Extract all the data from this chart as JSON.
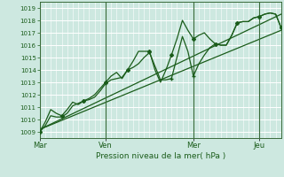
{
  "title": "Pression niveau de la mer( hPa )",
  "ylabel_values": [
    1009,
    1010,
    1011,
    1012,
    1013,
    1014,
    1015,
    1016,
    1017,
    1018,
    1019
  ],
  "ylim": [
    1008.5,
    1019.5
  ],
  "xlim": [
    0,
    264
  ],
  "background_color": "#cde8e0",
  "grid_color": "#ffffff",
  "line_color": "#1a5c1a",
  "day_labels": [
    "Mar",
    "Ven",
    "Mer",
    "Jeu"
  ],
  "day_positions": [
    0,
    72,
    168,
    240
  ],
  "series1_x": [
    0,
    6,
    12,
    18,
    24,
    30,
    36,
    42,
    48,
    54,
    60,
    66,
    72,
    78,
    84,
    90,
    96,
    102,
    108,
    114,
    120,
    126,
    132,
    138,
    144,
    150,
    156,
    162,
    168,
    174,
    180,
    186,
    192,
    198,
    204,
    210,
    216,
    222,
    228,
    234,
    240,
    246,
    252,
    258,
    264
  ],
  "series1_y": [
    1009.0,
    1009.8,
    1010.8,
    1010.5,
    1010.3,
    1010.8,
    1011.4,
    1011.2,
    1011.5,
    1011.7,
    1012.0,
    1012.5,
    1013.0,
    1013.5,
    1013.8,
    1013.3,
    1014.0,
    1014.7,
    1015.5,
    1015.5,
    1015.5,
    1014.0,
    1013.0,
    1014.0,
    1015.2,
    1016.5,
    1018.0,
    1017.2,
    1016.5,
    1016.8,
    1017.0,
    1016.5,
    1016.1,
    1016.0,
    1016.0,
    1016.8,
    1017.8,
    1017.9,
    1017.9,
    1018.2,
    1018.3,
    1018.5,
    1018.6,
    1018.5,
    1017.4
  ],
  "series2_x": [
    0,
    6,
    12,
    18,
    24,
    30,
    36,
    42,
    48,
    54,
    60,
    66,
    72,
    78,
    84,
    90,
    96,
    102,
    108,
    114,
    120,
    126,
    132,
    138,
    144,
    150,
    156,
    162,
    168,
    174,
    180,
    186,
    192,
    198,
    204,
    210,
    216,
    222,
    228,
    234,
    240,
    246,
    252,
    258,
    264
  ],
  "series2_y": [
    1009.0,
    1009.5,
    1010.3,
    1010.2,
    1010.2,
    1010.5,
    1011.1,
    1011.3,
    1011.5,
    1011.6,
    1011.8,
    1012.3,
    1012.9,
    1013.2,
    1013.3,
    1013.4,
    1014.0,
    1014.2,
    1014.5,
    1015.0,
    1015.4,
    1014.3,
    1013.2,
    1013.2,
    1013.3,
    1015.0,
    1016.7,
    1015.5,
    1013.5,
    1014.5,
    1015.2,
    1015.8,
    1016.1,
    1016.0,
    1016.0,
    1016.8,
    1017.8,
    1017.9,
    1017.9,
    1018.2,
    1018.3,
    1018.5,
    1018.6,
    1018.5,
    1017.4
  ],
  "trend1_x": [
    0,
    264
  ],
  "trend1_y": [
    1009.2,
    1018.5
  ],
  "trend2_x": [
    0,
    264
  ],
  "trend2_y": [
    1009.2,
    1017.2
  ]
}
